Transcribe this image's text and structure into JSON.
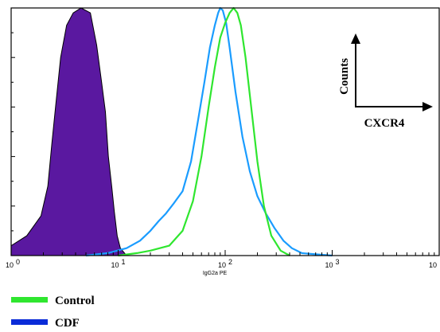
{
  "chart_data": {
    "type": "area",
    "title": "",
    "xlabel": "IgG2a PE",
    "ylabel": "",
    "xscale": "log",
    "xlim": [
      1,
      10000
    ],
    "ylim": [
      0,
      100
    ],
    "grid": false,
    "x_ticks": [
      1,
      10,
      100,
      1000,
      10000
    ],
    "x_tick_labels": [
      {
        "base": "10",
        "exp": "0"
      },
      {
        "base": "10",
        "exp": "1"
      },
      {
        "base": "10",
        "exp": "2"
      },
      {
        "base": "10",
        "exp": "3"
      },
      {
        "base": "10",
        "exp": ""
      }
    ],
    "series": [
      {
        "key": "isotype",
        "style": "filled",
        "color": "#5a18a0",
        "x": [
          1,
          1.4,
          1.9,
          2.2,
          2.4,
          2.6,
          2.9,
          3.3,
          3.8,
          4.5,
          5.5,
          6.3,
          7.0,
          7.6,
          8.1,
          8.7,
          9.2,
          9.8,
          10.5,
          12
        ],
        "y": [
          4,
          8,
          16,
          28,
          45,
          60,
          80,
          93,
          98,
          100,
          98,
          85,
          70,
          58,
          40,
          28,
          18,
          8,
          3,
          0
        ]
      },
      {
        "key": "cdf",
        "style": "line",
        "color": "#1a9cff",
        "x": [
          5,
          8,
          12,
          16,
          20,
          24,
          28,
          33,
          40,
          48,
          56,
          64,
          72,
          80,
          86,
          90,
          95,
          102,
          110,
          125,
          145,
          170,
          200,
          240,
          290,
          350,
          420,
          520,
          700,
          1000
        ],
        "y": [
          0,
          1,
          3,
          6,
          10,
          14,
          17,
          21,
          26,
          38,
          55,
          70,
          84,
          93,
          98,
          100,
          99,
          94,
          84,
          66,
          48,
          34,
          24,
          17,
          11,
          6,
          3,
          1,
          0.5,
          0
        ]
      },
      {
        "name": "Control",
        "key": "control",
        "style": "line",
        "color": "#2fe62f",
        "x": [
          10,
          15,
          20,
          30,
          40,
          50,
          60,
          70,
          80,
          90,
          100,
          110,
          120,
          130,
          140,
          155,
          175,
          200,
          230,
          270,
          330,
          400
        ],
        "y": [
          0,
          1,
          2,
          4,
          10,
          22,
          40,
          60,
          76,
          88,
          94,
          98,
          100,
          98,
          93,
          80,
          60,
          38,
          20,
          8,
          2,
          0
        ]
      },
      {
        "name": "CDF",
        "key": "cdf-legend",
        "style": "legend-only",
        "color": "#0033ee"
      }
    ]
  },
  "legend": {
    "items": [
      {
        "label": "Control",
        "color": "#2fe62f"
      },
      {
        "label": "CDF",
        "color": "#0a2bd8"
      }
    ]
  },
  "annotation": {
    "y_label": "Counts",
    "x_label": "CXCR4"
  }
}
